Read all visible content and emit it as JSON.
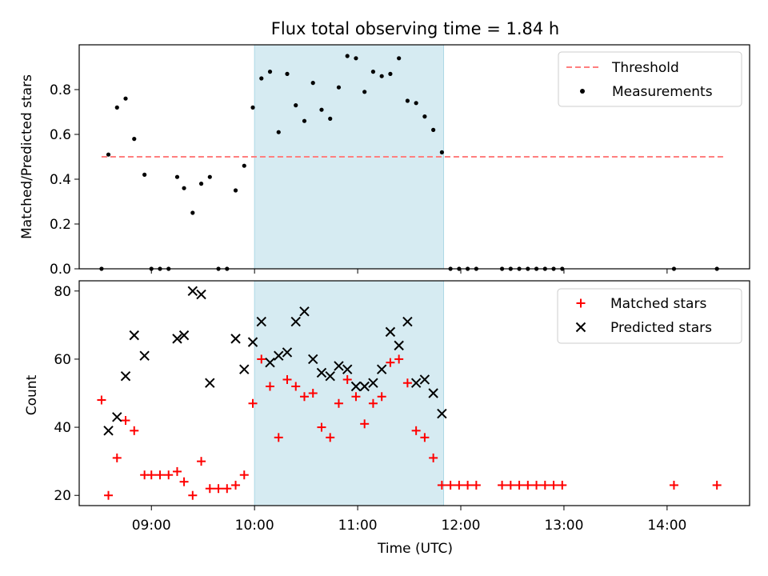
{
  "chart_data": [
    {
      "type": "scatter",
      "title": "Flux total observing time = 1.84 h",
      "xlabel": "",
      "ylabel": "Matched/Predicted stars",
      "xlim": [
        "08:18",
        "14:48"
      ],
      "ylim": [
        0,
        1.0
      ],
      "yticks": [
        0.0,
        0.2,
        0.4,
        0.6,
        0.8
      ],
      "ytick_labels": [
        "0.0",
        "0.2",
        "0.4",
        "0.6",
        "0.8"
      ],
      "xticks": [
        "09:00",
        "10:00",
        "11:00",
        "12:00",
        "13:00",
        "14:00"
      ],
      "shaded_span": [
        "10:00",
        "11:50"
      ],
      "shaded_color": "#add8e6",
      "legend_position": "upper right",
      "threshold": {
        "name": "Threshold",
        "color": "#ff7f7f",
        "style": "dashed",
        "x": [
          "08:31",
          "14:33"
        ],
        "y": 0.5
      },
      "series": [
        {
          "name": "Measurements",
          "color": "#000000",
          "marker": "dot",
          "x": [
            "08:31",
            "08:35",
            "08:40",
            "08:45",
            "08:50",
            "08:56",
            "09:00",
            "09:05",
            "09:10",
            "09:15",
            "09:19",
            "09:24",
            "09:29",
            "09:34",
            "09:39",
            "09:44",
            "09:49",
            "09:54",
            "09:59",
            "10:04",
            "10:09",
            "10:14",
            "10:19",
            "10:24",
            "10:29",
            "10:34",
            "10:39",
            "10:44",
            "10:49",
            "10:54",
            "10:59",
            "11:04",
            "11:09",
            "11:14",
            "11:19",
            "11:24",
            "11:29",
            "11:34",
            "11:39",
            "11:44",
            "11:49",
            "11:54",
            "11:59",
            "12:04",
            "12:09",
            "12:24",
            "12:29",
            "12:34",
            "12:39",
            "12:44",
            "12:49",
            "12:54",
            "12:59",
            "14:04",
            "14:29"
          ],
          "y": [
            0.0,
            0.51,
            0.72,
            0.76,
            0.58,
            0.42,
            0.0,
            0.0,
            0.0,
            0.41,
            0.36,
            0.25,
            0.38,
            0.41,
            0.0,
            0.0,
            0.35,
            0.46,
            0.72,
            0.85,
            0.88,
            0.61,
            0.87,
            0.73,
            0.66,
            0.83,
            0.71,
            0.67,
            0.81,
            0.95,
            0.94,
            0.79,
            0.88,
            0.86,
            0.87,
            0.94,
            0.75,
            0.74,
            0.68,
            0.62,
            0.52,
            0.0,
            0.0,
            0.0,
            0.0,
            0.0,
            0.0,
            0.0,
            0.0,
            0.0,
            0.0,
            0.0,
            0.0,
            0.0,
            0.0
          ]
        }
      ]
    },
    {
      "type": "scatter",
      "title": "",
      "xlabel": "Time (UTC)",
      "ylabel": "Count",
      "xlim": [
        "08:18",
        "14:48"
      ],
      "ylim": [
        17,
        83
      ],
      "yticks": [
        20,
        40,
        60,
        80
      ],
      "ytick_labels": [
        "20",
        "40",
        "60",
        "80"
      ],
      "xticks": [
        "09:00",
        "10:00",
        "11:00",
        "12:00",
        "13:00",
        "14:00"
      ],
      "shaded_span": [
        "10:00",
        "11:50"
      ],
      "shaded_color": "#add8e6",
      "legend_position": "upper right",
      "series": [
        {
          "name": "Matched stars",
          "color": "#ff0000",
          "marker": "plus",
          "x": [
            "08:31",
            "08:35",
            "08:40",
            "08:45",
            "08:50",
            "08:56",
            "09:00",
            "09:05",
            "09:10",
            "09:15",
            "09:19",
            "09:24",
            "09:29",
            "09:34",
            "09:39",
            "09:44",
            "09:49",
            "09:54",
            "09:59",
            "10:04",
            "10:09",
            "10:14",
            "10:19",
            "10:24",
            "10:29",
            "10:34",
            "10:39",
            "10:44",
            "10:49",
            "10:54",
            "10:59",
            "11:04",
            "11:09",
            "11:14",
            "11:19",
            "11:24",
            "11:29",
            "11:34",
            "11:39",
            "11:44",
            "11:49",
            "11:54",
            "11:59",
            "12:04",
            "12:09",
            "12:24",
            "12:29",
            "12:34",
            "12:39",
            "12:44",
            "12:49",
            "12:54",
            "12:59",
            "14:04",
            "14:29"
          ],
          "y": [
            48,
            20,
            31,
            42,
            39,
            26,
            26,
            26,
            26,
            27,
            24,
            20,
            30,
            22,
            22,
            22,
            23,
            26,
            47,
            60,
            52,
            37,
            54,
            52,
            49,
            50,
            40,
            37,
            47,
            54,
            49,
            41,
            47,
            49,
            59,
            60,
            53,
            39,
            37,
            31,
            23,
            23,
            23,
            23,
            23,
            23,
            23,
            23,
            23,
            23,
            23,
            23,
            23,
            23,
            23
          ]
        },
        {
          "name": "Predicted stars",
          "color": "#000000",
          "marker": "x",
          "x": [
            "08:35",
            "08:40",
            "08:45",
            "08:50",
            "08:56",
            "09:15",
            "09:19",
            "09:24",
            "09:29",
            "09:34",
            "09:49",
            "09:54",
            "09:59",
            "10:04",
            "10:09",
            "10:14",
            "10:19",
            "10:24",
            "10:29",
            "10:34",
            "10:39",
            "10:44",
            "10:49",
            "10:54",
            "10:59",
            "11:04",
            "11:09",
            "11:14",
            "11:19",
            "11:24",
            "11:29",
            "11:34",
            "11:39",
            "11:44",
            "11:49"
          ],
          "y": [
            39,
            43,
            55,
            67,
            61,
            66,
            67,
            80,
            79,
            53,
            66,
            57,
            65,
            71,
            59,
            61,
            62,
            71,
            74,
            60,
            56,
            55,
            58,
            57,
            52,
            52,
            53,
            57,
            68,
            64,
            71,
            53,
            54,
            50,
            44
          ]
        }
      ]
    }
  ]
}
